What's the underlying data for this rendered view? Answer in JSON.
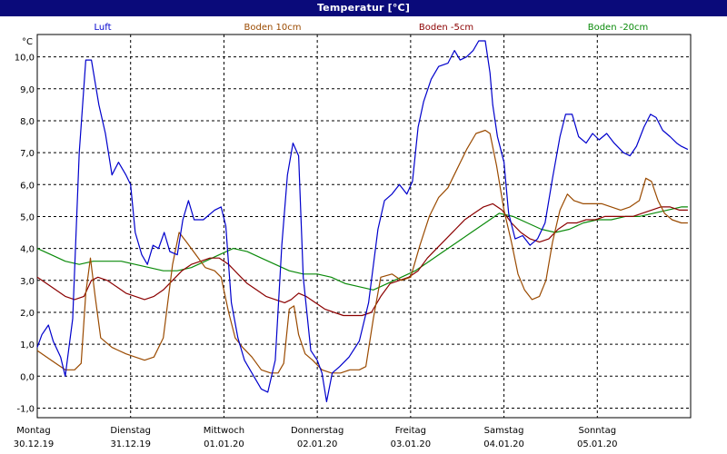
{
  "title": "Temperatur [°C]",
  "legend": [
    {
      "label": "Luft",
      "color": "#0000cc"
    },
    {
      "label": "Boden 10cm",
      "color": "#9a4a00"
    },
    {
      "label": "Boden -5cm",
      "color": "#8b0000"
    },
    {
      "label": "Boden -20cm",
      "color": "#0a8a0a"
    }
  ],
  "chart_data": {
    "type": "line",
    "title": "Temperatur [°C]",
    "ylabel": "°C",
    "ylim": [
      -1.3,
      10.7
    ],
    "yticks": [
      "10,0",
      "9,0",
      "8,0",
      "7,0",
      "6,0",
      "5,0",
      "4,0",
      "3,0",
      "2,0",
      "1,0",
      "0,0",
      "-1,0"
    ],
    "ytick_values": [
      10,
      9,
      8,
      7,
      6,
      5,
      4,
      3,
      2,
      1,
      0,
      -1
    ],
    "xlim": [
      0,
      7
    ],
    "xticks": [
      {
        "day": "Montag",
        "date": "30.12.19"
      },
      {
        "day": "Dienstag",
        "date": "31.12.19"
      },
      {
        "day": "Mittwoch",
        "date": "01.01.20"
      },
      {
        "day": "Donnerstag",
        "date": "02.01.20"
      },
      {
        "day": "Freitag",
        "date": "03.01.20"
      },
      {
        "day": "Samstag",
        "date": "04.01.20"
      },
      {
        "day": "Sonntag",
        "date": "05.01.20"
      }
    ],
    "grid": true,
    "series": [
      {
        "name": "Luft",
        "color": "#0000cc",
        "points": [
          [
            0,
            0.9
          ],
          [
            0.05,
            1.3
          ],
          [
            0.12,
            1.6
          ],
          [
            0.17,
            1.1
          ],
          [
            0.25,
            0.6
          ],
          [
            0.3,
            0.0
          ],
          [
            0.38,
            1.8
          ],
          [
            0.45,
            7.0
          ],
          [
            0.52,
            9.9
          ],
          [
            0.58,
            9.9
          ],
          [
            0.66,
            8.5
          ],
          [
            0.73,
            7.6
          ],
          [
            0.8,
            6.3
          ],
          [
            0.87,
            6.7
          ],
          [
            0.95,
            6.3
          ],
          [
            1.0,
            6.0
          ],
          [
            1.05,
            4.5
          ],
          [
            1.12,
            3.8
          ],
          [
            1.18,
            3.5
          ],
          [
            1.24,
            4.1
          ],
          [
            1.3,
            4.0
          ],
          [
            1.36,
            4.5
          ],
          [
            1.42,
            3.9
          ],
          [
            1.5,
            3.8
          ],
          [
            1.56,
            4.9
          ],
          [
            1.62,
            5.5
          ],
          [
            1.68,
            4.9
          ],
          [
            1.78,
            4.9
          ],
          [
            1.9,
            5.2
          ],
          [
            1.97,
            5.3
          ],
          [
            2.02,
            4.7
          ],
          [
            2.08,
            2.3
          ],
          [
            2.15,
            1.2
          ],
          [
            2.22,
            0.5
          ],
          [
            2.3,
            0.1
          ],
          [
            2.4,
            -0.4
          ],
          [
            2.47,
            -0.5
          ],
          [
            2.55,
            0.5
          ],
          [
            2.62,
            4.1
          ],
          [
            2.68,
            6.3
          ],
          [
            2.74,
            7.3
          ],
          [
            2.8,
            6.9
          ],
          [
            2.85,
            3.1
          ],
          [
            2.93,
            0.8
          ],
          [
            3.0,
            0.5
          ],
          [
            3.05,
            0.1
          ],
          [
            3.1,
            -0.8
          ],
          [
            3.16,
            0.1
          ],
          [
            3.24,
            0.3
          ],
          [
            3.34,
            0.6
          ],
          [
            3.45,
            1.1
          ],
          [
            3.55,
            2.3
          ],
          [
            3.65,
            4.6
          ],
          [
            3.72,
            5.5
          ],
          [
            3.8,
            5.7
          ],
          [
            3.88,
            6.0
          ],
          [
            3.96,
            5.7
          ],
          [
            4.02,
            6.1
          ],
          [
            4.08,
            7.8
          ],
          [
            4.14,
            8.6
          ],
          [
            4.22,
            9.3
          ],
          [
            4.3,
            9.7
          ],
          [
            4.4,
            9.8
          ],
          [
            4.47,
            10.2
          ],
          [
            4.53,
            9.9
          ],
          [
            4.6,
            10.0
          ],
          [
            4.67,
            10.2
          ],
          [
            4.73,
            10.5
          ],
          [
            4.8,
            10.5
          ],
          [
            4.85,
            9.5
          ],
          [
            4.88,
            8.5
          ],
          [
            4.93,
            7.5
          ],
          [
            5.0,
            6.7
          ],
          [
            5.05,
            5.1
          ],
          [
            5.12,
            4.3
          ],
          [
            5.2,
            4.4
          ],
          [
            5.28,
            4.1
          ],
          [
            5.36,
            4.3
          ],
          [
            5.44,
            4.8
          ],
          [
            5.52,
            6.2
          ],
          [
            5.6,
            7.5
          ],
          [
            5.66,
            8.2
          ],
          [
            5.73,
            8.2
          ],
          [
            5.8,
            7.5
          ],
          [
            5.88,
            7.3
          ],
          [
            5.95,
            7.6
          ],
          [
            6.02,
            7.4
          ],
          [
            6.1,
            7.6
          ],
          [
            6.18,
            7.3
          ],
          [
            6.28,
            7.0
          ],
          [
            6.35,
            6.9
          ],
          [
            6.42,
            7.2
          ],
          [
            6.5,
            7.8
          ],
          [
            6.57,
            8.2
          ],
          [
            6.63,
            8.1
          ],
          [
            6.7,
            7.7
          ],
          [
            6.78,
            7.5
          ],
          [
            6.85,
            7.3
          ],
          [
            6.9,
            7.2
          ],
          [
            6.97,
            7.1
          ]
        ]
      },
      {
        "name": "Boden 10cm",
        "color": "#9a4a00",
        "points": [
          [
            0,
            0.8
          ],
          [
            0.1,
            0.6
          ],
          [
            0.2,
            0.4
          ],
          [
            0.3,
            0.2
          ],
          [
            0.4,
            0.2
          ],
          [
            0.47,
            0.4
          ],
          [
            0.52,
            2.6
          ],
          [
            0.57,
            3.7
          ],
          [
            0.62,
            2.5
          ],
          [
            0.68,
            1.2
          ],
          [
            0.8,
            0.9
          ],
          [
            0.95,
            0.7
          ],
          [
            1.05,
            0.6
          ],
          [
            1.15,
            0.5
          ],
          [
            1.25,
            0.6
          ],
          [
            1.35,
            1.2
          ],
          [
            1.45,
            3.5
          ],
          [
            1.52,
            4.5
          ],
          [
            1.6,
            4.2
          ],
          [
            1.7,
            3.8
          ],
          [
            1.8,
            3.4
          ],
          [
            1.9,
            3.3
          ],
          [
            1.97,
            3.1
          ],
          [
            2.05,
            2.0
          ],
          [
            2.12,
            1.2
          ],
          [
            2.2,
            0.9
          ],
          [
            2.3,
            0.6
          ],
          [
            2.4,
            0.2
          ],
          [
            2.5,
            0.1
          ],
          [
            2.58,
            0.1
          ],
          [
            2.64,
            0.4
          ],
          [
            2.7,
            2.1
          ],
          [
            2.75,
            2.2
          ],
          [
            2.8,
            1.3
          ],
          [
            2.87,
            0.7
          ],
          [
            2.95,
            0.5
          ],
          [
            3.05,
            0.2
          ],
          [
            3.15,
            0.1
          ],
          [
            3.25,
            0.1
          ],
          [
            3.35,
            0.2
          ],
          [
            3.45,
            0.2
          ],
          [
            3.52,
            0.3
          ],
          [
            3.6,
            1.8
          ],
          [
            3.68,
            3.1
          ],
          [
            3.8,
            3.2
          ],
          [
            3.9,
            3.0
          ],
          [
            4.0,
            3.1
          ],
          [
            4.1,
            4.1
          ],
          [
            4.2,
            5.0
          ],
          [
            4.3,
            5.6
          ],
          [
            4.4,
            5.9
          ],
          [
            4.5,
            6.5
          ],
          [
            4.6,
            7.1
          ],
          [
            4.7,
            7.6
          ],
          [
            4.8,
            7.7
          ],
          [
            4.85,
            7.6
          ],
          [
            4.92,
            6.6
          ],
          [
            5.0,
            5.2
          ],
          [
            5.08,
            4.2
          ],
          [
            5.15,
            3.2
          ],
          [
            5.22,
            2.7
          ],
          [
            5.3,
            2.4
          ],
          [
            5.38,
            2.5
          ],
          [
            5.45,
            3.0
          ],
          [
            5.52,
            4.2
          ],
          [
            5.6,
            5.2
          ],
          [
            5.68,
            5.7
          ],
          [
            5.75,
            5.5
          ],
          [
            5.85,
            5.4
          ],
          [
            5.95,
            5.4
          ],
          [
            6.05,
            5.4
          ],
          [
            6.15,
            5.3
          ],
          [
            6.25,
            5.2
          ],
          [
            6.35,
            5.3
          ],
          [
            6.45,
            5.5
          ],
          [
            6.52,
            6.2
          ],
          [
            6.58,
            6.1
          ],
          [
            6.65,
            5.5
          ],
          [
            6.72,
            5.1
          ],
          [
            6.8,
            4.9
          ],
          [
            6.9,
            4.8
          ],
          [
            6.97,
            4.8
          ]
        ]
      },
      {
        "name": "Boden -5cm",
        "color": "#8b0000",
        "points": [
          [
            0,
            3.1
          ],
          [
            0.1,
            2.9
          ],
          [
            0.2,
            2.7
          ],
          [
            0.3,
            2.5
          ],
          [
            0.4,
            2.4
          ],
          [
            0.5,
            2.5
          ],
          [
            0.58,
            3.0
          ],
          [
            0.65,
            3.1
          ],
          [
            0.75,
            3.0
          ],
          [
            0.85,
            2.8
          ],
          [
            0.95,
            2.6
          ],
          [
            1.05,
            2.5
          ],
          [
            1.15,
            2.4
          ],
          [
            1.25,
            2.5
          ],
          [
            1.35,
            2.7
          ],
          [
            1.45,
            3.0
          ],
          [
            1.55,
            3.3
          ],
          [
            1.65,
            3.5
          ],
          [
            1.75,
            3.6
          ],
          [
            1.85,
            3.7
          ],
          [
            1.95,
            3.7
          ],
          [
            2.05,
            3.5
          ],
          [
            2.15,
            3.2
          ],
          [
            2.25,
            2.9
          ],
          [
            2.35,
            2.7
          ],
          [
            2.45,
            2.5
          ],
          [
            2.55,
            2.4
          ],
          [
            2.65,
            2.3
          ],
          [
            2.72,
            2.4
          ],
          [
            2.8,
            2.6
          ],
          [
            2.88,
            2.5
          ],
          [
            2.98,
            2.3
          ],
          [
            3.08,
            2.1
          ],
          [
            3.18,
            2.0
          ],
          [
            3.28,
            1.9
          ],
          [
            3.38,
            1.9
          ],
          [
            3.48,
            1.9
          ],
          [
            3.58,
            2.0
          ],
          [
            3.68,
            2.5
          ],
          [
            3.78,
            2.9
          ],
          [
            3.88,
            3.0
          ],
          [
            3.98,
            3.1
          ],
          [
            4.08,
            3.3
          ],
          [
            4.18,
            3.7
          ],
          [
            4.28,
            4.0
          ],
          [
            4.38,
            4.3
          ],
          [
            4.48,
            4.6
          ],
          [
            4.58,
            4.9
          ],
          [
            4.68,
            5.1
          ],
          [
            4.78,
            5.3
          ],
          [
            4.88,
            5.4
          ],
          [
            4.98,
            5.2
          ],
          [
            5.08,
            4.8
          ],
          [
            5.18,
            4.5
          ],
          [
            5.28,
            4.3
          ],
          [
            5.38,
            4.2
          ],
          [
            5.48,
            4.3
          ],
          [
            5.58,
            4.6
          ],
          [
            5.68,
            4.8
          ],
          [
            5.78,
            4.8
          ],
          [
            5.88,
            4.9
          ],
          [
            5.98,
            4.9
          ],
          [
            6.08,
            5.0
          ],
          [
            6.18,
            5.0
          ],
          [
            6.28,
            5.0
          ],
          [
            6.38,
            5.0
          ],
          [
            6.48,
            5.1
          ],
          [
            6.58,
            5.2
          ],
          [
            6.68,
            5.3
          ],
          [
            6.78,
            5.3
          ],
          [
            6.88,
            5.2
          ],
          [
            6.97,
            5.2
          ]
        ]
      },
      {
        "name": "Boden -20cm",
        "color": "#0a8a0a",
        "points": [
          [
            0,
            4.0
          ],
          [
            0.15,
            3.8
          ],
          [
            0.3,
            3.6
          ],
          [
            0.45,
            3.5
          ],
          [
            0.6,
            3.6
          ],
          [
            0.75,
            3.6
          ],
          [
            0.9,
            3.6
          ],
          [
            1.05,
            3.5
          ],
          [
            1.2,
            3.4
          ],
          [
            1.35,
            3.3
          ],
          [
            1.5,
            3.3
          ],
          [
            1.65,
            3.4
          ],
          [
            1.8,
            3.6
          ],
          [
            1.95,
            3.8
          ],
          [
            2.1,
            4.0
          ],
          [
            2.25,
            3.9
          ],
          [
            2.4,
            3.7
          ],
          [
            2.55,
            3.5
          ],
          [
            2.7,
            3.3
          ],
          [
            2.85,
            3.2
          ],
          [
            3.0,
            3.2
          ],
          [
            3.15,
            3.1
          ],
          [
            3.3,
            2.9
          ],
          [
            3.45,
            2.8
          ],
          [
            3.6,
            2.7
          ],
          [
            3.75,
            2.9
          ],
          [
            3.9,
            3.1
          ],
          [
            4.05,
            3.3
          ],
          [
            4.2,
            3.6
          ],
          [
            4.35,
            3.9
          ],
          [
            4.5,
            4.2
          ],
          [
            4.65,
            4.5
          ],
          [
            4.8,
            4.8
          ],
          [
            4.95,
            5.1
          ],
          [
            5.1,
            5.0
          ],
          [
            5.25,
            4.8
          ],
          [
            5.4,
            4.6
          ],
          [
            5.55,
            4.5
          ],
          [
            5.7,
            4.6
          ],
          [
            5.85,
            4.8
          ],
          [
            6.0,
            4.9
          ],
          [
            6.15,
            4.9
          ],
          [
            6.3,
            5.0
          ],
          [
            6.45,
            5.0
          ],
          [
            6.6,
            5.1
          ],
          [
            6.75,
            5.2
          ],
          [
            6.9,
            5.3
          ],
          [
            6.97,
            5.3
          ]
        ]
      }
    ]
  }
}
